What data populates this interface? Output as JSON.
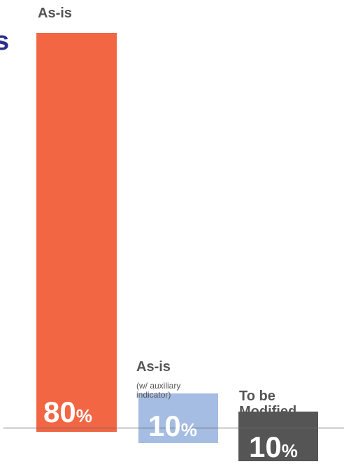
{
  "chart_data": {
    "type": "bar",
    "categories": [
      "As-is",
      "As-is",
      "To be Modified"
    ],
    "category_sublabels": [
      "",
      "(w/ auxiliary indicator)",
      ""
    ],
    "values": [
      80,
      10,
      10
    ],
    "value_labels": [
      "80",
      "10",
      "10"
    ],
    "unit": "%",
    "colors": [
      "#f26644",
      "#a5bde3",
      "#555555"
    ],
    "title": "",
    "xlabel": "",
    "ylabel": "",
    "grid": false,
    "legend": "none"
  },
  "edge_text": "s"
}
